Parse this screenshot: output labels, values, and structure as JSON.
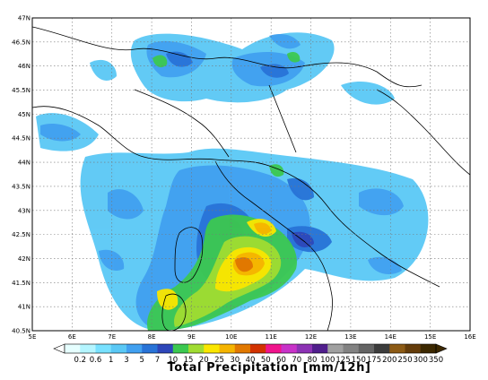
{
  "map": {
    "lat_ticks": [
      "47N",
      "46.5N",
      "46N",
      "45.5N",
      "45N",
      "44.5N",
      "44N",
      "43.5N",
      "43N",
      "42.5N",
      "42N",
      "41.5N",
      "41N",
      "40.5N"
    ],
    "lon_ticks": [
      "5E",
      "6E",
      "7E",
      "8E",
      "9E",
      "10E",
      "11E",
      "12E",
      "13E",
      "14E",
      "15E",
      "16E"
    ],
    "lat_range": [
      40.5,
      47
    ],
    "lon_range": [
      5,
      16
    ],
    "grid": "dotted"
  },
  "colorbar": {
    "labels": [
      "0.2",
      "0.6",
      "1",
      "3",
      "5",
      "7",
      "10",
      "15",
      "20",
      "25",
      "30",
      "40",
      "50",
      "60",
      "70",
      "80",
      "100",
      "125",
      "150",
      "175",
      "200",
      "250",
      "300",
      "350"
    ],
    "colors": [
      "#e6ffff",
      "#b4f5ff",
      "#78e1ff",
      "#5ac8f5",
      "#41a0f0",
      "#2873d7",
      "#2d46b9",
      "#3cc850",
      "#a0dc32",
      "#fae600",
      "#f5b400",
      "#e17800",
      "#d23200",
      "#f0148c",
      "#c832c8",
      "#8c32b4",
      "#501e8c",
      "#a0a0a0",
      "#828282",
      "#646464",
      "#3c3c3c",
      "#8c5a14",
      "#643c0a",
      "#3c2800"
    ],
    "title": "Total Precipitation [mm/12h]"
  }
}
